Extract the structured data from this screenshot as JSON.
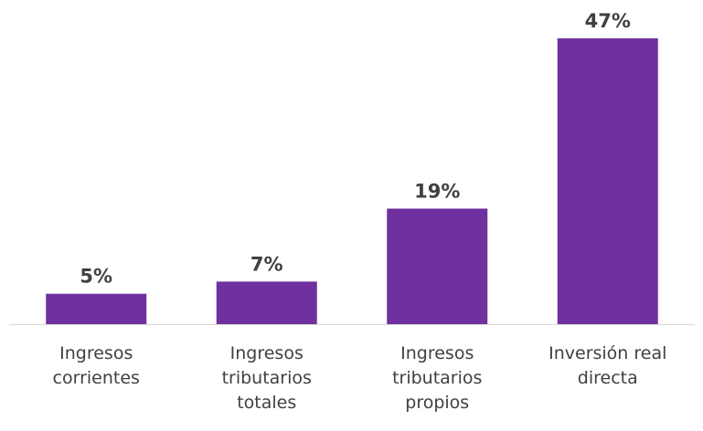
{
  "chart_data": {
    "type": "bar",
    "categories": [
      "Ingresos corrientes",
      "Ingresos tributarios totales",
      "Ingresos tributarios propios",
      "Inversión real directa"
    ],
    "values": [
      5,
      7,
      19,
      47
    ],
    "value_labels": [
      "5%",
      "7%",
      "19%",
      "47%"
    ],
    "color": "#7030a0"
  }
}
